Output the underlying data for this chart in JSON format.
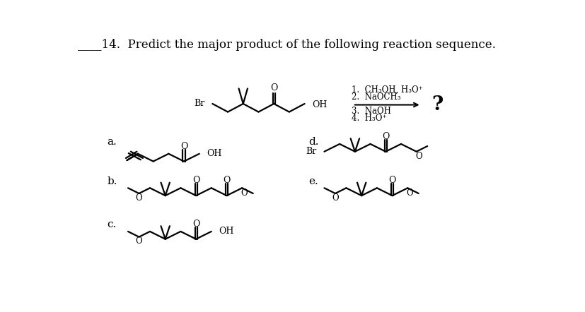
{
  "background_color": "#ffffff",
  "title_line": "____14.  Predict the major product of the following reaction sequence.",
  "title_fontsize": 12,
  "reagent1": "1.  CH₃OH, H₃O⁺",
  "reagent2": "2.  NaOCH₃",
  "reagent3": "3.  NaOH",
  "reagent4": "4.  H₃O⁺",
  "question_mark": "?",
  "labels": [
    "a.",
    "b.",
    "c.",
    "d.",
    "e."
  ],
  "figure_width": 8.28,
  "figure_height": 4.42,
  "dpi": 100,
  "lw": 1.6
}
